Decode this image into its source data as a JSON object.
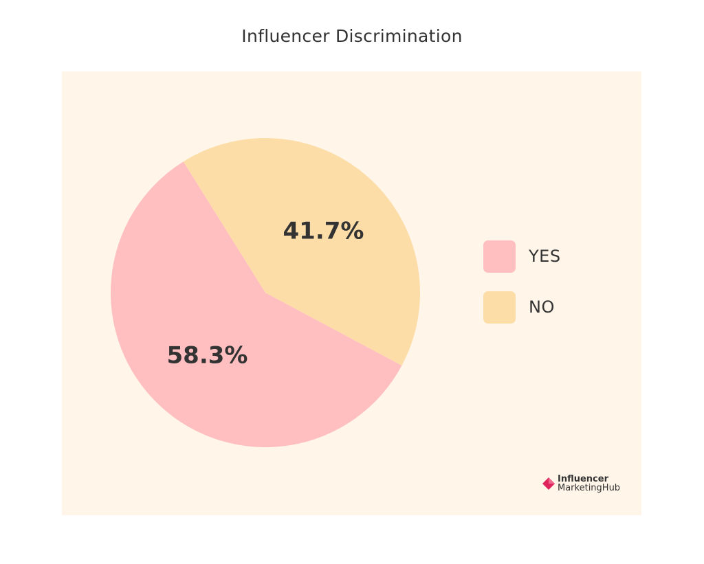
{
  "chart_data": {
    "type": "pie",
    "title": "Influencer Discrimination",
    "slices": [
      {
        "label": "YES",
        "value": 58.3,
        "display": "58.3%",
        "color": "#ffbfc0"
      },
      {
        "label": "NO",
        "value": 41.7,
        "display": "41.7%",
        "color": "#fddda7"
      }
    ],
    "legend_position": "right"
  },
  "colors": {
    "background": "#ffffff",
    "panel": "#fff5e8",
    "text": "#333333",
    "brand_accent": "#e0245e"
  },
  "brand": {
    "line1": "Influencer",
    "line2": "MarketingHub",
    "icon": "diamond-logo-icon"
  }
}
